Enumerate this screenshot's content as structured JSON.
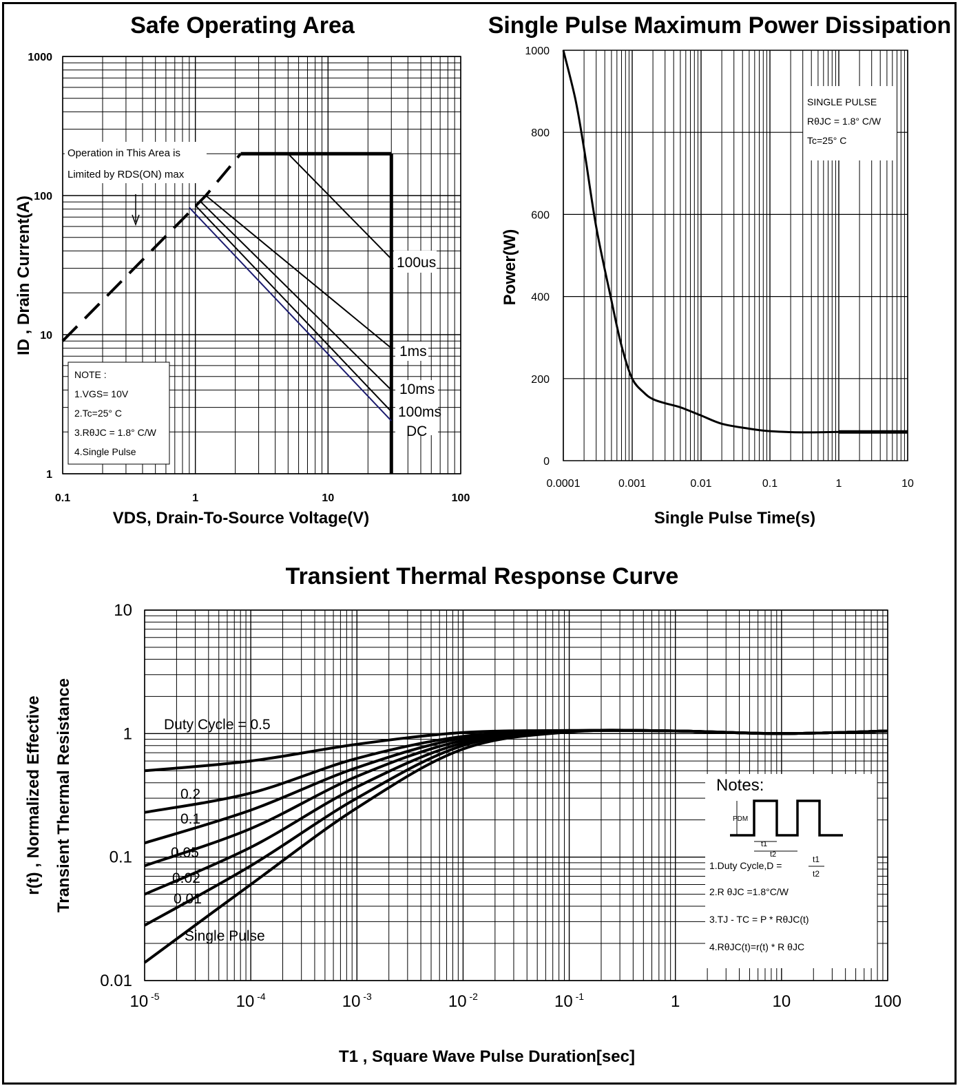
{
  "chart_data": [
    {
      "type": "line",
      "title": "Safe Operating Area",
      "xlabel": "VDS, Drain-To-Source Voltage(V)",
      "ylabel": "ID , Drain Current(A)",
      "xscale": "log",
      "yscale": "log",
      "xlim": [
        0.1,
        100
      ],
      "ylim": [
        1,
        1000
      ],
      "x_ticks": [
        "0.1",
        "1",
        "10",
        "100"
      ],
      "y_ticks": [
        "1",
        "10",
        "100",
        "1000"
      ],
      "grid": true,
      "series": [
        {
          "name": "100us",
          "x": [
            5,
            30
          ],
          "y": [
            200,
            35
          ]
        },
        {
          "name": "1ms",
          "x": [
            1.2,
            30
          ],
          "y": [
            100,
            8
          ]
        },
        {
          "name": "10ms",
          "x": [
            1.1,
            30
          ],
          "y": [
            90,
            4
          ]
        },
        {
          "name": "100ms",
          "x": [
            1.0,
            30
          ],
          "y": [
            85,
            2.8
          ]
        },
        {
          "name": "DC",
          "x": [
            0.9,
            30
          ],
          "y": [
            82,
            2.4
          ]
        }
      ],
      "limits": {
        "rds_on": {
          "x": [
            0.1,
            1.2,
            2.2
          ],
          "y": [
            9,
            100,
            200
          ]
        },
        "current_limit": {
          "x": [
            2.2,
            30
          ],
          "y": [
            200,
            200
          ]
        },
        "voltage_limit": {
          "x": [
            30,
            30
          ],
          "y": [
            200,
            1
          ]
        }
      },
      "annotation_area": [
        "Operation in This Area is",
        "Limited by RDS(ON) max"
      ],
      "notes": [
        "NOTE :",
        "1.VGS= 10V",
        "2.Tc=25° C",
        "3.RθJC = 1.8° C/W",
        "4.Single Pulse"
      ]
    },
    {
      "type": "line",
      "title": "Single Pulse Maximum Power Dissipation",
      "xlabel": "Single Pulse Time(s)",
      "ylabel": "Power(W)",
      "xscale": "log",
      "xlim": [
        0.0001,
        10
      ],
      "ylim": [
        0,
        1000
      ],
      "x_ticks": [
        "0.0001",
        "0.001",
        "0.01",
        "0.1",
        "1",
        "10"
      ],
      "y_ticks": [
        "0",
        "200",
        "400",
        "600",
        "800",
        "1000"
      ],
      "grid": true,
      "series": [
        {
          "name": "",
          "x": [
            0.0001,
            0.00015,
            0.0002,
            0.0003,
            0.0005,
            0.0007,
            0.001,
            0.0015,
            0.002,
            0.003,
            0.005,
            0.01,
            0.02,
            0.05,
            0.1,
            0.3,
            1,
            3,
            10
          ],
          "y": [
            1000,
            880,
            760,
            570,
            390,
            280,
            200,
            165,
            150,
            140,
            130,
            110,
            90,
            78,
            72,
            69,
            70,
            70,
            70
          ]
        }
      ],
      "notes": [
        "SINGLE PULSE",
        "RθJC = 1.8° C/W",
        "Tc=25° C"
      ]
    },
    {
      "type": "line",
      "title": "Transient Thermal Response Curve",
      "xlabel": "T1 , Square Wave Pulse Duration[sec]",
      "ylabel": "r(t) , Normalized Effective",
      "ylabel2": "Transient Thermal Resistance",
      "xscale": "log",
      "yscale": "log",
      "xlim": [
        1e-05,
        100
      ],
      "ylim": [
        0.01,
        10
      ],
      "y_ticks": [
        "0.01",
        "0.1",
        "1",
        "10"
      ],
      "x_ticks": [
        {
          "base": "10",
          "exp": "-5"
        },
        {
          "base": "10",
          "exp": "-4"
        },
        {
          "base": "10",
          "exp": "-3"
        },
        {
          "base": "10",
          "exp": "-2"
        },
        {
          "base": "10",
          "exp": "-1"
        },
        {
          "base": "1",
          "exp": ""
        },
        {
          "base": "10",
          "exp": ""
        },
        {
          "base": "100",
          "exp": ""
        }
      ],
      "grid": true,
      "series": [
        {
          "name": "Duty Cycle = 0.5",
          "x": [
            1e-05,
            0.0001,
            0.001,
            0.01,
            0.1,
            1,
            10,
            100
          ],
          "y": [
            0.5,
            0.6,
            0.82,
            1.02,
            1.06,
            1.05,
            1.0,
            1.05
          ]
        },
        {
          "name": "0.2",
          "x": [
            1e-05,
            0.0001,
            0.001,
            0.01,
            0.1,
            1,
            10,
            100
          ],
          "y": [
            0.23,
            0.33,
            0.63,
            0.95,
            1.05,
            1.05,
            1.0,
            1.05
          ]
        },
        {
          "name": "0.1",
          "x": [
            1e-05,
            0.0001,
            0.001,
            0.01,
            0.1,
            1,
            10,
            100
          ],
          "y": [
            0.13,
            0.24,
            0.53,
            0.92,
            1.05,
            1.05,
            1.0,
            1.05
          ]
        },
        {
          "name": "0.05",
          "x": [
            1e-05,
            0.0001,
            0.001,
            0.01,
            0.1,
            1,
            10,
            100
          ],
          "y": [
            0.085,
            0.17,
            0.45,
            0.88,
            1.05,
            1.05,
            1.0,
            1.05
          ]
        },
        {
          "name": "0.02",
          "x": [
            1e-05,
            0.0001,
            0.001,
            0.01,
            0.1,
            1,
            10,
            100
          ],
          "y": [
            0.05,
            0.12,
            0.37,
            0.84,
            1.04,
            1.05,
            1.0,
            1.05
          ]
        },
        {
          "name": "0.01",
          "x": [
            1e-05,
            0.0001,
            0.001,
            0.01,
            0.1,
            1,
            10,
            100
          ],
          "y": [
            0.028,
            0.085,
            0.3,
            0.8,
            1.04,
            1.05,
            1.0,
            1.05
          ]
        },
        {
          "name": "Single Pulse",
          "x": [
            1e-05,
            0.0001,
            0.001,
            0.01,
            0.1,
            1,
            10,
            100
          ],
          "y": [
            0.014,
            0.06,
            0.25,
            0.75,
            1.03,
            1.05,
            1.0,
            1.05
          ]
        }
      ],
      "notes": {
        "title": "Notes:",
        "lines": [
          "1.Duty Cycle,D =",
          "2.R θJC =1.8°C/W",
          "3.TJ - TC = P * RθJC(t)",
          "4.RθJC(t)=r(t) * R θJC"
        ],
        "fraction": {
          "num": "t1",
          "den": "t2"
        },
        "diagram": {
          "pdm": "PDM",
          "t1": "t1",
          "t2": "t2"
        }
      }
    }
  ]
}
